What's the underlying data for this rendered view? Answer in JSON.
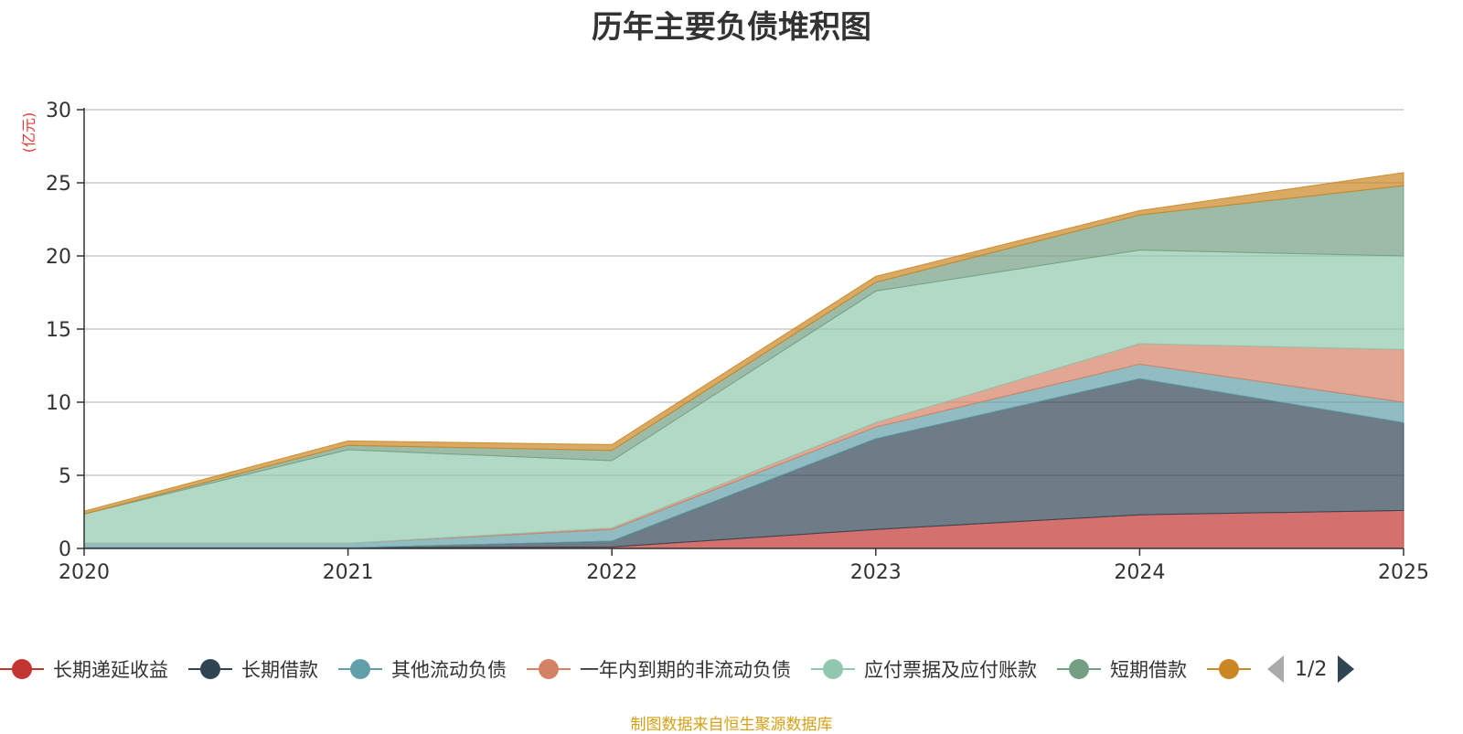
{
  "chart_data": {
    "type": "area",
    "stacked": true,
    "title": "历年主要负债堆积图",
    "unit_label": "(亿元)",
    "x": [
      "2020",
      "2021",
      "2022",
      "2023",
      "2024",
      "2025"
    ],
    "ylim": [
      0,
      30
    ],
    "yticks": [
      0,
      5,
      10,
      15,
      20,
      25,
      30
    ],
    "grid": true,
    "legend_position": "bottom",
    "series": [
      {
        "name": "长期递延收益",
        "color": "#c23531",
        "values": [
          0.05,
          0.05,
          0.1,
          1.3,
          2.3,
          2.6
        ]
      },
      {
        "name": "长期借款",
        "color": "#2f4554",
        "values": [
          0.0,
          0.0,
          0.4,
          6.2,
          9.3,
          6.0
        ]
      },
      {
        "name": "其他流动负债",
        "color": "#61a0a8",
        "values": [
          0.3,
          0.3,
          0.8,
          0.8,
          1.0,
          1.4
        ]
      },
      {
        "name": "一年内到期的非流动负债",
        "color": "#d48265",
        "values": [
          0.0,
          0.0,
          0.1,
          0.3,
          1.4,
          3.6
        ]
      },
      {
        "name": "应付票据及应付账款",
        "color": "#91c7ae",
        "values": [
          2.0,
          6.4,
          4.6,
          9.0,
          6.4,
          6.4
        ]
      },
      {
        "name": "短期借款",
        "color": "#749f83",
        "values": [
          0.0,
          0.3,
          0.7,
          0.6,
          2.4,
          4.8
        ]
      },
      {
        "name": "",
        "color": "#ca8622",
        "values": [
          0.2,
          0.3,
          0.4,
          0.4,
          0.3,
          0.9
        ]
      }
    ]
  },
  "legend": {
    "page_indicator": "1/2"
  },
  "footer": {
    "source_text": "制图数据来自恒生聚源数据库"
  }
}
